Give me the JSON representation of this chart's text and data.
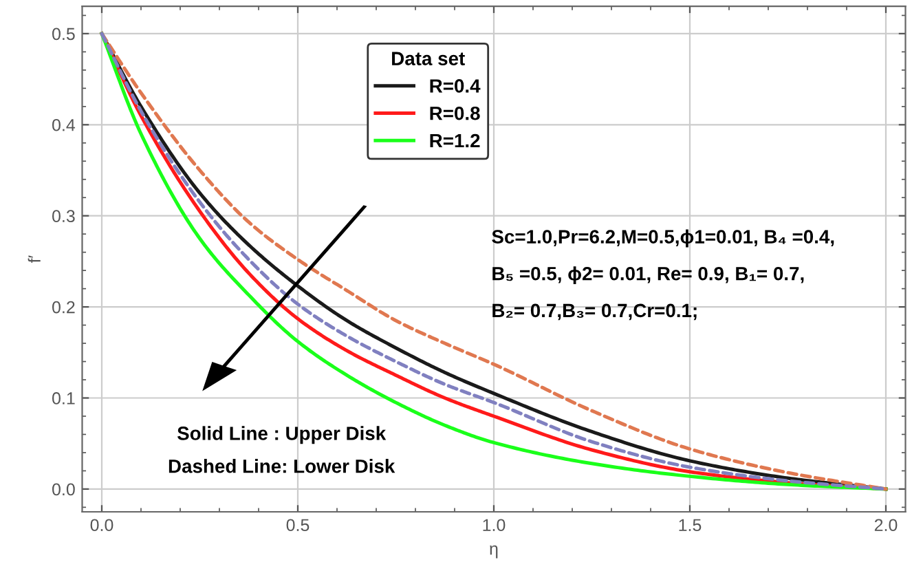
{
  "chart_data": {
    "type": "line",
    "xlabel": "η",
    "ylabel": "f′",
    "legend_title": "Data set",
    "legend": "top",
    "grid": true,
    "x": [
      0,
      0.1,
      0.25,
      0.375,
      0.5,
      0.625,
      0.75,
      0.875,
      1.0,
      1.25,
      1.5,
      1.75,
      2.0
    ],
    "xlim": [
      -0.05,
      2.05
    ],
    "ylim": [
      -0.025,
      0.53
    ],
    "xticks": [
      {
        "value": 0,
        "label": "0.0"
      },
      0.5,
      {
        "value": 1,
        "label": "1.0"
      },
      1.5,
      {
        "value": 2,
        "label": "2.0"
      }
    ],
    "yticks": [
      {
        "value": 0,
        "label": "0.0"
      },
      0.1,
      0.2,
      0.3,
      0.4,
      0.5
    ],
    "series": [
      {
        "name": "R=0.4",
        "color": "#1a1a1a",
        "line_style": "solid",
        "values": [
          0.5,
          0.42,
          0.325,
          0.268,
          0.223,
          0.185,
          0.155,
          0.128,
          0.105,
          0.063,
          0.031,
          0.012,
          0
        ]
      },
      {
        "name": "R=0.8",
        "color": "#ff1a1a",
        "line_style": "solid",
        "values": [
          0.5,
          0.41,
          0.305,
          0.237,
          0.187,
          0.152,
          0.125,
          0.1,
          0.08,
          0.043,
          0.019,
          0.007,
          0
        ]
      },
      {
        "name": "R=1.2",
        "color": "#1aff1a",
        "line_style": "solid",
        "values": [
          0.5,
          0.39,
          0.275,
          0.213,
          0.162,
          0.125,
          0.095,
          0.07,
          0.051,
          0.028,
          0.014,
          0.005,
          0
        ]
      },
      {
        "color": "#e07850",
        "line_style": "dashed",
        "values": [
          0.5,
          0.435,
          0.35,
          0.293,
          0.252,
          0.218,
          0.185,
          0.16,
          0.137,
          0.086,
          0.044,
          0.018,
          0
        ]
      },
      {
        "color": "#8080c0",
        "line_style": "dashed",
        "values": [
          0.5,
          0.415,
          0.315,
          0.252,
          0.203,
          0.168,
          0.14,
          0.115,
          0.095,
          0.052,
          0.024,
          0.009,
          0
        ]
      }
    ],
    "annotations": [
      "Sc=1.0,Pr=6.2,M=0.5,ϕ1=0.01, B₄ =0.4,",
      "B₅ =0.5, ϕ2= 0.01, Re= 0.9, B₁= 0.7,",
      "B₂= 0.7,B₃= 0.7,Cr=0.1;",
      "Solid Line : Upper Disk",
      "Dashed Line: Lower Disk"
    ]
  }
}
